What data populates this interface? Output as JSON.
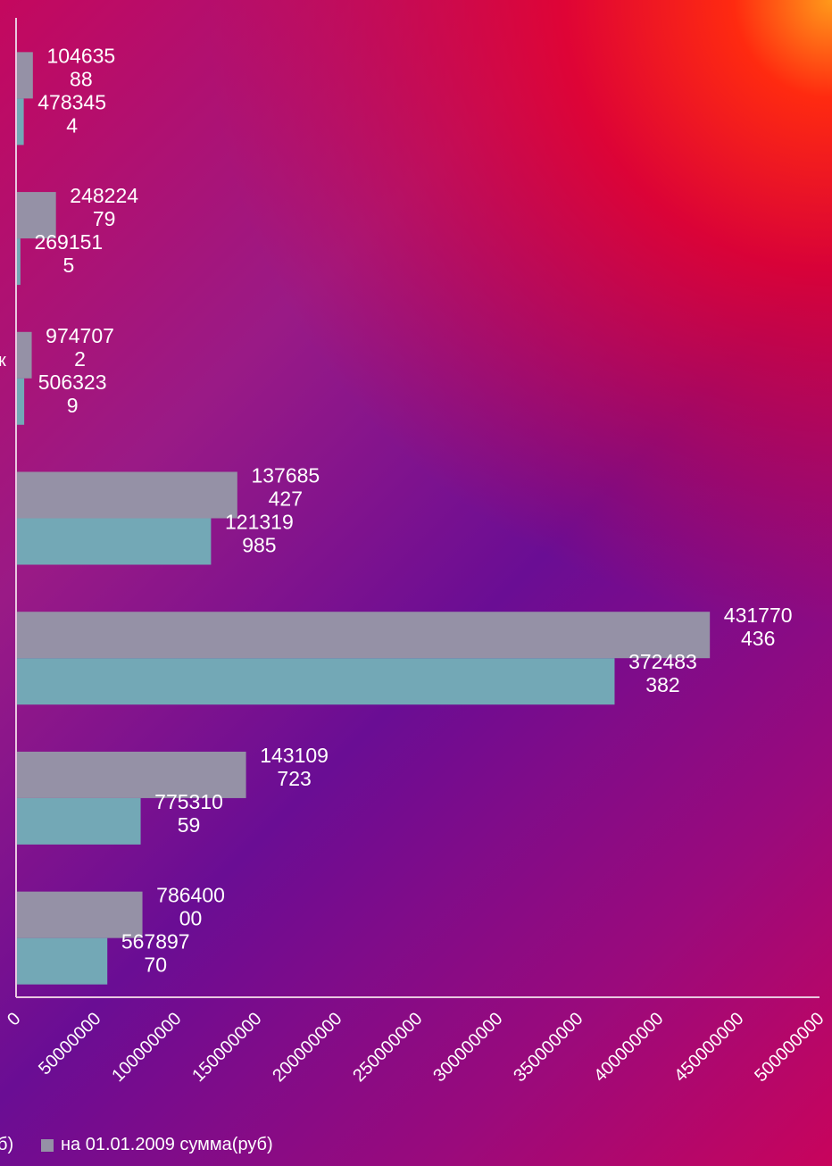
{
  "chart_data": {
    "type": "bar",
    "orientation": "horizontal",
    "xlim": [
      0,
      500000000
    ],
    "x_ticks": [
      "0",
      "50000000",
      "100000000",
      "150000000",
      "200000000",
      "250000000",
      "300000000",
      "350000000",
      "400000000",
      "450000000",
      "500000000"
    ],
    "grid": false,
    "legend_position": "bottom",
    "series": [
      {
        "name": "",
        "values": [
          10463588,
          24822479,
          9747072,
          137685427,
          431770436,
          143109723,
          78640000
        ],
        "labels": [
          [
            "104635",
            "88"
          ],
          [
            "248224",
            "79"
          ],
          [
            "974707",
            "2"
          ],
          [
            "137685",
            "427"
          ],
          [
            "431770",
            "436"
          ],
          [
            "143109",
            "723"
          ],
          [
            "786400",
            "00"
          ]
        ]
      },
      {
        "name": "на 01.01.2009 сумма(руб)",
        "values": [
          4783454,
          2691515,
          5063239,
          121319985,
          372483382,
          77531059,
          56789770
        ],
        "labels": [
          [
            "478345",
            "4"
          ],
          [
            "269151",
            "5"
          ],
          [
            "506323",
            "9"
          ],
          [
            "121319",
            "985"
          ],
          [
            "372483",
            "382"
          ],
          [
            "775310",
            "59"
          ],
          [
            "567897",
            "70"
          ]
        ]
      }
    ]
  },
  "legend": {
    "left_partial": "б)",
    "right_label": "на 01.01.2009 сумма(руб)"
  },
  "clipped_category_label": "к",
  "colors": {
    "series_a": "#9591a6",
    "series_b": "#73a8b6",
    "axis": "#e9c8e0",
    "text": "#ffffff"
  }
}
